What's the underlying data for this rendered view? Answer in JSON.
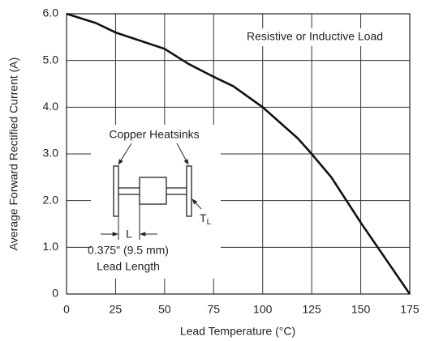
{
  "chart_data": {
    "type": "line",
    "x_label": "Lead Temperature (°C)",
    "y_label": "Average Forward Rectified Current (A)",
    "x": [
      0,
      15,
      25,
      50,
      62,
      75,
      85,
      100,
      118,
      125,
      135,
      150,
      175
    ],
    "values": [
      6.0,
      5.8,
      5.6,
      5.25,
      4.93,
      4.65,
      4.45,
      4.0,
      3.33,
      3.0,
      2.5,
      1.53,
      0
    ],
    "color": "#111111",
    "xlim": [
      0,
      175
    ],
    "xticks": [
      0,
      25,
      50,
      75,
      100,
      125,
      150,
      175
    ],
    "ylim": [
      0,
      6
    ],
    "yticks": [
      0,
      {
        "value": 1,
        "label": "1.0"
      },
      {
        "value": 2,
        "label": "2.0"
      },
      {
        "value": 3,
        "label": "3.0"
      },
      {
        "value": 4,
        "label": "4.0"
      },
      {
        "value": 5,
        "label": "5.0"
      },
      {
        "value": 6,
        "label": "6.0"
      }
    ],
    "grid": true,
    "annotations": {
      "load": "Resistive or Inductive Load",
      "heatsinks": "Copper Heatsinks",
      "length_symbol": "L",
      "lead_temp": {
        "main": "T",
        "sub": "L"
      },
      "length_value": "0.375\" (9.5 mm)",
      "length_caption": "Lead Length"
    }
  }
}
